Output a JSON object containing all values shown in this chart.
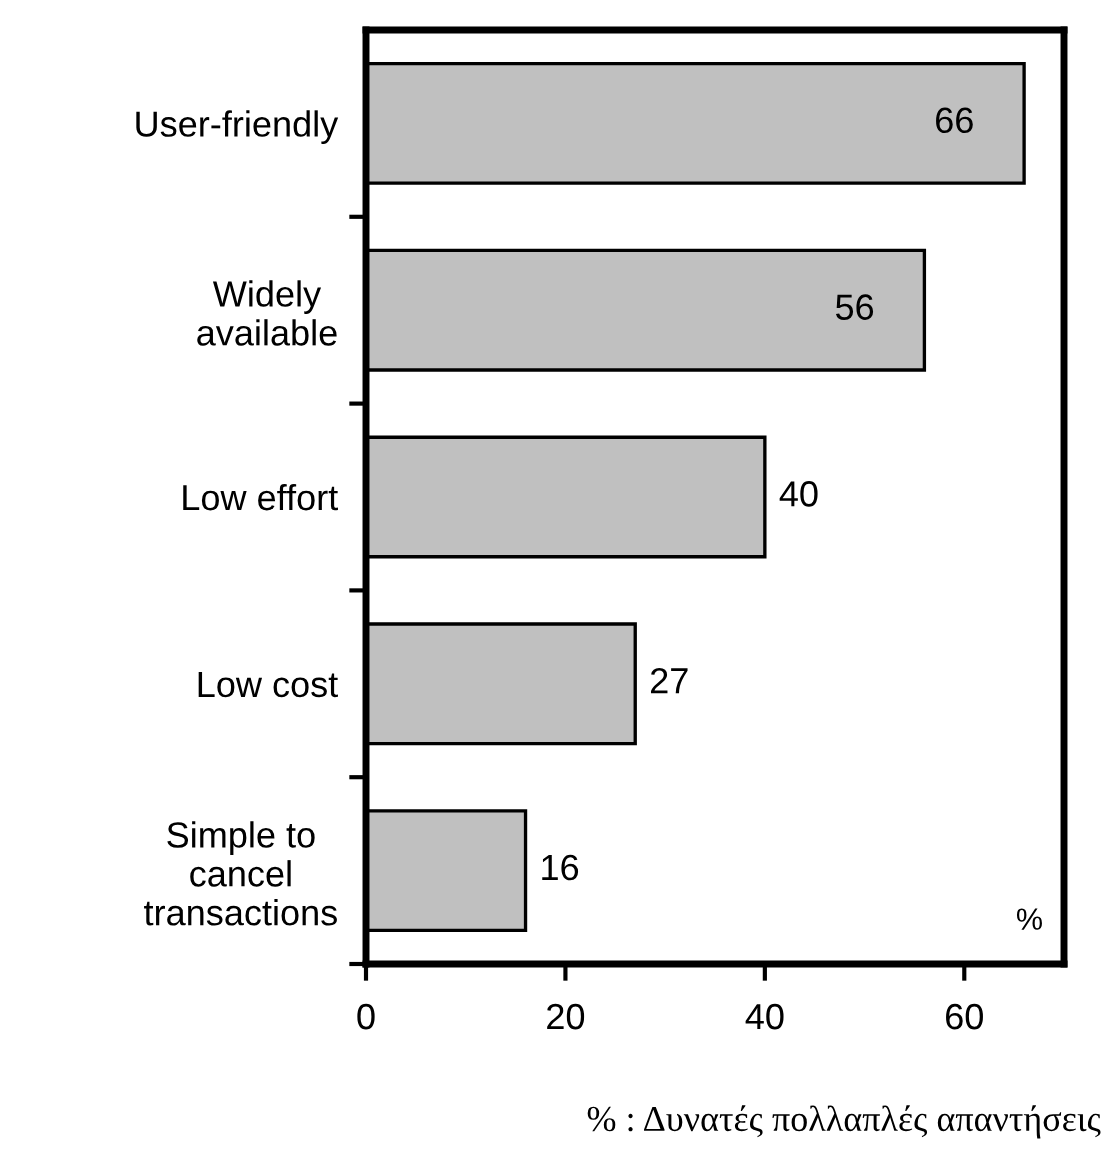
{
  "chart_data": {
    "type": "bar",
    "orientation": "horizontal",
    "categories": [
      "User-friendly",
      "Widely\navailable",
      "Low effort",
      "Low cost",
      "Simple to\ncancel\ntransactions"
    ],
    "values": [
      66,
      56,
      40,
      27,
      16
    ],
    "color": "#c0c0c0",
    "xlim": [
      0,
      70
    ],
    "xticks": [
      0,
      20,
      40,
      60
    ],
    "grid": false,
    "data_labels": true,
    "annotations": [
      "%",
      "% : Δυνατές πολλαπλές απαντήσεις"
    ]
  }
}
